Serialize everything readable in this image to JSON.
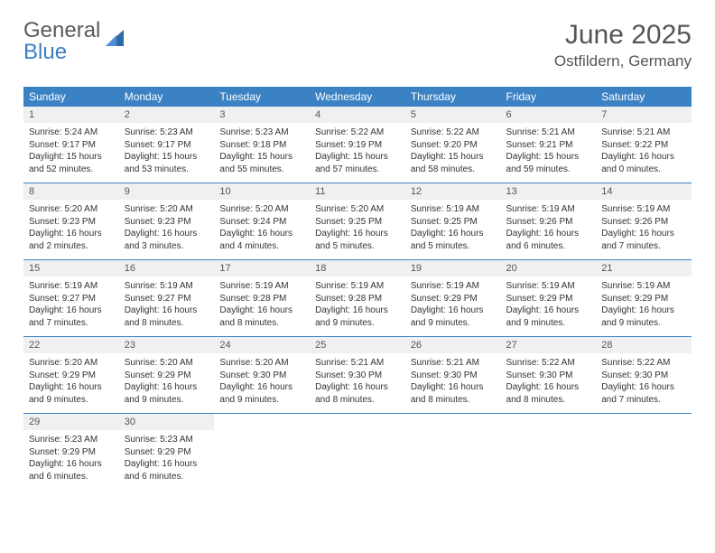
{
  "logo": {
    "word1": "General",
    "word2": "Blue"
  },
  "title": "June 2025",
  "location": "Ostfildern, Germany",
  "colors": {
    "header_bg": "#3b82c4",
    "header_text": "#ffffff",
    "daynum_bg": "#eef0f2",
    "border": "#3b82c4",
    "body_text": "#333333",
    "title_text": "#555555"
  },
  "weekdays": [
    "Sunday",
    "Monday",
    "Tuesday",
    "Wednesday",
    "Thursday",
    "Friday",
    "Saturday"
  ],
  "weeks": [
    [
      {
        "n": "1",
        "sr": "Sunrise: 5:24 AM",
        "ss": "Sunset: 9:17 PM",
        "dl": "Daylight: 15 hours and 52 minutes."
      },
      {
        "n": "2",
        "sr": "Sunrise: 5:23 AM",
        "ss": "Sunset: 9:17 PM",
        "dl": "Daylight: 15 hours and 53 minutes."
      },
      {
        "n": "3",
        "sr": "Sunrise: 5:23 AM",
        "ss": "Sunset: 9:18 PM",
        "dl": "Daylight: 15 hours and 55 minutes."
      },
      {
        "n": "4",
        "sr": "Sunrise: 5:22 AM",
        "ss": "Sunset: 9:19 PM",
        "dl": "Daylight: 15 hours and 57 minutes."
      },
      {
        "n": "5",
        "sr": "Sunrise: 5:22 AM",
        "ss": "Sunset: 9:20 PM",
        "dl": "Daylight: 15 hours and 58 minutes."
      },
      {
        "n": "6",
        "sr": "Sunrise: 5:21 AM",
        "ss": "Sunset: 9:21 PM",
        "dl": "Daylight: 15 hours and 59 minutes."
      },
      {
        "n": "7",
        "sr": "Sunrise: 5:21 AM",
        "ss": "Sunset: 9:22 PM",
        "dl": "Daylight: 16 hours and 0 minutes."
      }
    ],
    [
      {
        "n": "8",
        "sr": "Sunrise: 5:20 AM",
        "ss": "Sunset: 9:23 PM",
        "dl": "Daylight: 16 hours and 2 minutes."
      },
      {
        "n": "9",
        "sr": "Sunrise: 5:20 AM",
        "ss": "Sunset: 9:23 PM",
        "dl": "Daylight: 16 hours and 3 minutes."
      },
      {
        "n": "10",
        "sr": "Sunrise: 5:20 AM",
        "ss": "Sunset: 9:24 PM",
        "dl": "Daylight: 16 hours and 4 minutes."
      },
      {
        "n": "11",
        "sr": "Sunrise: 5:20 AM",
        "ss": "Sunset: 9:25 PM",
        "dl": "Daylight: 16 hours and 5 minutes."
      },
      {
        "n": "12",
        "sr": "Sunrise: 5:19 AM",
        "ss": "Sunset: 9:25 PM",
        "dl": "Daylight: 16 hours and 5 minutes."
      },
      {
        "n": "13",
        "sr": "Sunrise: 5:19 AM",
        "ss": "Sunset: 9:26 PM",
        "dl": "Daylight: 16 hours and 6 minutes."
      },
      {
        "n": "14",
        "sr": "Sunrise: 5:19 AM",
        "ss": "Sunset: 9:26 PM",
        "dl": "Daylight: 16 hours and 7 minutes."
      }
    ],
    [
      {
        "n": "15",
        "sr": "Sunrise: 5:19 AM",
        "ss": "Sunset: 9:27 PM",
        "dl": "Daylight: 16 hours and 7 minutes."
      },
      {
        "n": "16",
        "sr": "Sunrise: 5:19 AM",
        "ss": "Sunset: 9:27 PM",
        "dl": "Daylight: 16 hours and 8 minutes."
      },
      {
        "n": "17",
        "sr": "Sunrise: 5:19 AM",
        "ss": "Sunset: 9:28 PM",
        "dl": "Daylight: 16 hours and 8 minutes."
      },
      {
        "n": "18",
        "sr": "Sunrise: 5:19 AM",
        "ss": "Sunset: 9:28 PM",
        "dl": "Daylight: 16 hours and 9 minutes."
      },
      {
        "n": "19",
        "sr": "Sunrise: 5:19 AM",
        "ss": "Sunset: 9:29 PM",
        "dl": "Daylight: 16 hours and 9 minutes."
      },
      {
        "n": "20",
        "sr": "Sunrise: 5:19 AM",
        "ss": "Sunset: 9:29 PM",
        "dl": "Daylight: 16 hours and 9 minutes."
      },
      {
        "n": "21",
        "sr": "Sunrise: 5:19 AM",
        "ss": "Sunset: 9:29 PM",
        "dl": "Daylight: 16 hours and 9 minutes."
      }
    ],
    [
      {
        "n": "22",
        "sr": "Sunrise: 5:20 AM",
        "ss": "Sunset: 9:29 PM",
        "dl": "Daylight: 16 hours and 9 minutes."
      },
      {
        "n": "23",
        "sr": "Sunrise: 5:20 AM",
        "ss": "Sunset: 9:29 PM",
        "dl": "Daylight: 16 hours and 9 minutes."
      },
      {
        "n": "24",
        "sr": "Sunrise: 5:20 AM",
        "ss": "Sunset: 9:30 PM",
        "dl": "Daylight: 16 hours and 9 minutes."
      },
      {
        "n": "25",
        "sr": "Sunrise: 5:21 AM",
        "ss": "Sunset: 9:30 PM",
        "dl": "Daylight: 16 hours and 8 minutes."
      },
      {
        "n": "26",
        "sr": "Sunrise: 5:21 AM",
        "ss": "Sunset: 9:30 PM",
        "dl": "Daylight: 16 hours and 8 minutes."
      },
      {
        "n": "27",
        "sr": "Sunrise: 5:22 AM",
        "ss": "Sunset: 9:30 PM",
        "dl": "Daylight: 16 hours and 8 minutes."
      },
      {
        "n": "28",
        "sr": "Sunrise: 5:22 AM",
        "ss": "Sunset: 9:30 PM",
        "dl": "Daylight: 16 hours and 7 minutes."
      }
    ],
    [
      {
        "n": "29",
        "sr": "Sunrise: 5:23 AM",
        "ss": "Sunset: 9:29 PM",
        "dl": "Daylight: 16 hours and 6 minutes."
      },
      {
        "n": "30",
        "sr": "Sunrise: 5:23 AM",
        "ss": "Sunset: 9:29 PM",
        "dl": "Daylight: 16 hours and 6 minutes."
      },
      null,
      null,
      null,
      null,
      null
    ]
  ]
}
